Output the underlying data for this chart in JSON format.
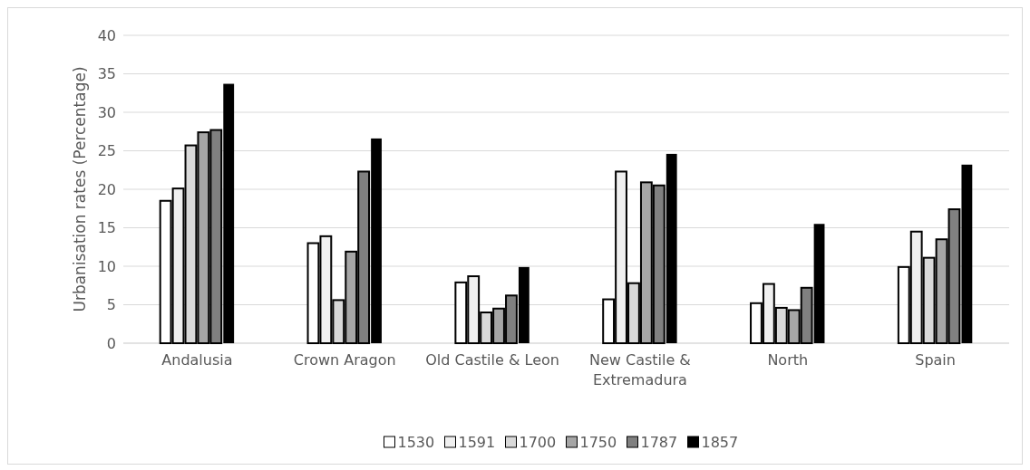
{
  "chart_data": {
    "type": "bar",
    "ylabel": "Urbanisation rates (Percentage)",
    "categories": [
      "Andalusia",
      "Crown Aragon",
      "Old Castile & Leon",
      "New Castile & Extremadura",
      "North",
      "Spain"
    ],
    "series": [
      {
        "name": "1530",
        "color": "#ffffff",
        "values": [
          18.5,
          13.0,
          7.9,
          5.7,
          5.2,
          9.9
        ]
      },
      {
        "name": "1591",
        "color": "#f0f0f0",
        "values": [
          20.1,
          13.9,
          8.7,
          22.3,
          7.7,
          14.5
        ]
      },
      {
        "name": "1700",
        "color": "#d9d9d9",
        "values": [
          25.7,
          5.6,
          4.0,
          7.8,
          4.6,
          11.1
        ]
      },
      {
        "name": "1750",
        "color": "#a6a6a6",
        "values": [
          27.4,
          11.9,
          4.5,
          20.9,
          4.3,
          13.5
        ]
      },
      {
        "name": "1787",
        "color": "#808080",
        "values": [
          27.7,
          22.3,
          6.2,
          20.5,
          7.2,
          17.4
        ]
      },
      {
        "name": "1857",
        "color": "#000000",
        "values": [
          33.7,
          26.6,
          9.9,
          24.6,
          15.5,
          23.2
        ]
      }
    ],
    "ylim": [
      0,
      40
    ],
    "yticks": [
      0,
      5,
      10,
      15,
      20,
      25,
      30,
      35,
      40
    ],
    "grid": "y",
    "legend": "bottom"
  }
}
